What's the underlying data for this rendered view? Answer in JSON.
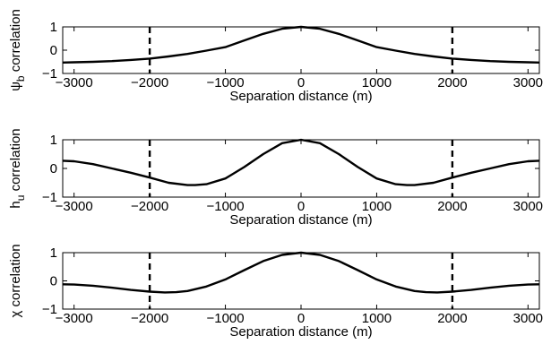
{
  "chart_data": [
    {
      "type": "line",
      "xlabel": "Separation distance (m)",
      "ylabel_main": "ψ",
      "ylabel_sub": "b",
      "ylabel_rest": " correlation",
      "xlim": [
        -3150,
        3150
      ],
      "ylim": [
        -1,
        1
      ],
      "xticks": [
        -3000,
        -2000,
        -1000,
        0,
        1000,
        2000,
        3000
      ],
      "yticks": [
        -1,
        0,
        1
      ],
      "grid": false,
      "vlines": [
        -2000,
        2000
      ],
      "series": [
        {
          "x": [
            -3150,
            -3000,
            -2750,
            -2500,
            -2250,
            -2000,
            -1750,
            -1500,
            -1250,
            -1000,
            -750,
            -500,
            -250,
            0,
            250,
            500,
            750,
            1000,
            1250,
            1500,
            1750,
            2000,
            2250,
            2500,
            2750,
            3000,
            3150
          ],
          "y": [
            -0.53,
            -0.52,
            -0.5,
            -0.47,
            -0.42,
            -0.36,
            -0.27,
            -0.16,
            -0.02,
            0.13,
            0.42,
            0.7,
            0.92,
            1.0,
            0.92,
            0.7,
            0.42,
            0.13,
            -0.02,
            -0.16,
            -0.27,
            -0.36,
            -0.42,
            -0.47,
            -0.5,
            -0.52,
            -0.53
          ]
        }
      ]
    },
    {
      "type": "line",
      "xlabel": "Separation distance (m)",
      "ylabel_main": "h",
      "ylabel_sub": "u",
      "ylabel_rest": " correlation",
      "xlim": [
        -3150,
        3150
      ],
      "ylim": [
        -1,
        1
      ],
      "xticks": [
        -3000,
        -2000,
        -1000,
        0,
        1000,
        2000,
        3000
      ],
      "yticks": [
        -1,
        0,
        1
      ],
      "grid": false,
      "vlines": [
        -2000,
        2000
      ],
      "series": [
        {
          "x": [
            -3150,
            -3000,
            -2750,
            -2500,
            -2250,
            -2000,
            -1750,
            -1500,
            -1400,
            -1250,
            -1000,
            -750,
            -500,
            -250,
            0,
            250,
            500,
            750,
            1000,
            1250,
            1400,
            1500,
            1750,
            2000,
            2250,
            2500,
            2750,
            3000,
            3150
          ],
          "y": [
            0.27,
            0.25,
            0.15,
            0.0,
            -0.15,
            -0.32,
            -0.5,
            -0.58,
            -0.58,
            -0.55,
            -0.35,
            0.05,
            0.5,
            0.88,
            1.0,
            0.88,
            0.5,
            0.05,
            -0.35,
            -0.55,
            -0.58,
            -0.58,
            -0.5,
            -0.32,
            -0.15,
            0.0,
            0.15,
            0.25,
            0.27
          ]
        }
      ]
    },
    {
      "type": "line",
      "xlabel": "Separation distance (m)",
      "ylabel_main": "χ",
      "ylabel_sub": "",
      "ylabel_rest": " correlation",
      "xlim": [
        -3150,
        3150
      ],
      "ylim": [
        -1,
        1
      ],
      "xticks": [
        -3000,
        -2000,
        -1000,
        0,
        1000,
        2000,
        3000
      ],
      "yticks": [
        -1,
        0,
        1
      ],
      "grid": false,
      "vlines": [
        -2000,
        2000
      ],
      "series": [
        {
          "x": [
            -3150,
            -3000,
            -2750,
            -2500,
            -2250,
            -2000,
            -1800,
            -1650,
            -1500,
            -1250,
            -1000,
            -750,
            -500,
            -250,
            0,
            250,
            500,
            750,
            1000,
            1250,
            1500,
            1650,
            1800,
            2000,
            2250,
            2500,
            2750,
            3000,
            3150
          ],
          "y": [
            -0.12,
            -0.13,
            -0.17,
            -0.24,
            -0.32,
            -0.38,
            -0.41,
            -0.4,
            -0.36,
            -0.2,
            0.05,
            0.38,
            0.7,
            0.92,
            1.0,
            0.92,
            0.7,
            0.38,
            0.05,
            -0.2,
            -0.36,
            -0.4,
            -0.41,
            -0.38,
            -0.32,
            -0.24,
            -0.17,
            -0.13,
            -0.12
          ]
        }
      ]
    }
  ]
}
